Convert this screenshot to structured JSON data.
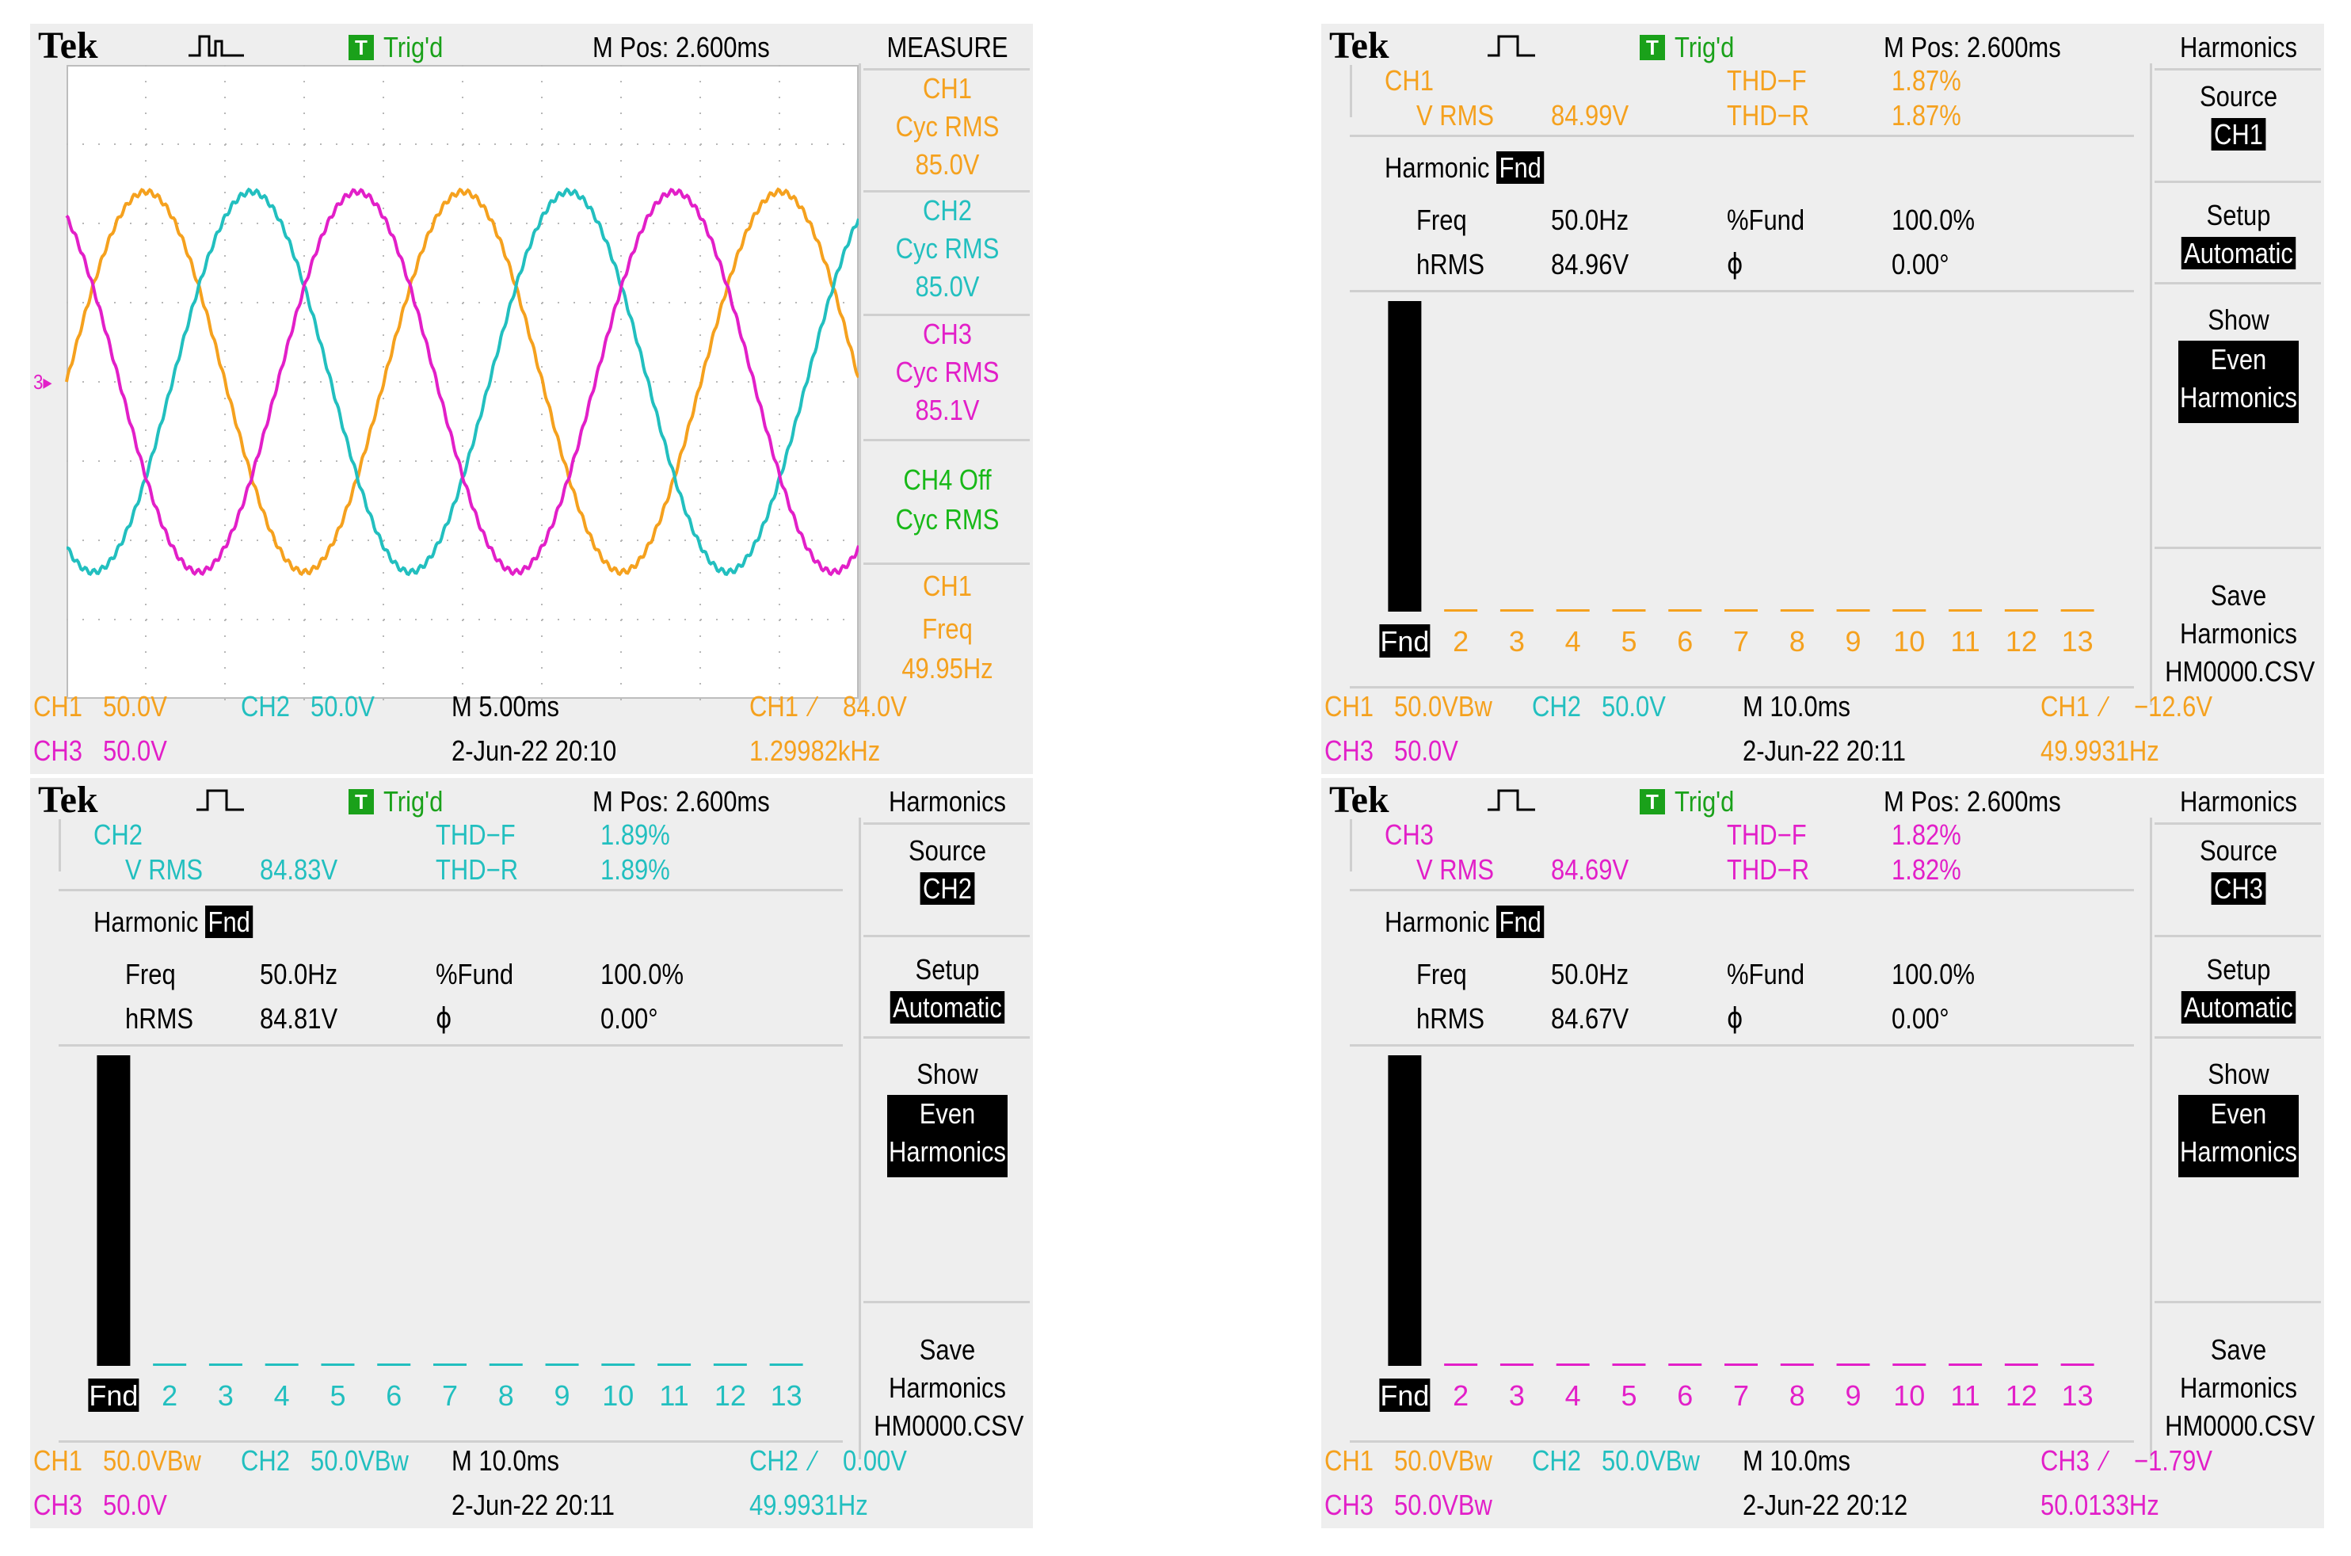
{
  "colors": {
    "ch1": "#f5a11e",
    "ch2": "#22bfbf",
    "ch3": "#e21fc8",
    "ch4": "#18b818",
    "trig": "#1aa11a",
    "bg": "#eeeeee"
  },
  "header": {
    "brand": "Tek",
    "trig_badge": "T",
    "trig_status": "Trig'd",
    "mpos": "M Pos: 2.600ms"
  },
  "panels": [
    {
      "menu_title": "MEASURE",
      "measures": [
        {
          "ch": "CH1",
          "type": "Cyc RMS",
          "value": "85.0V",
          "color": "ch1"
        },
        {
          "ch": "CH2",
          "type": "Cyc RMS",
          "value": "85.0V",
          "color": "ch2"
        },
        {
          "ch": "CH3",
          "type": "Cyc RMS",
          "value": "85.1V",
          "color": "ch3"
        },
        {
          "ch": "CH4 Off",
          "type": "Cyc RMS",
          "value": "",
          "color": "ch4"
        },
        {
          "ch": "CH1",
          "type": "Freq",
          "value": "49.95Hz",
          "color": "ch1"
        }
      ],
      "footer": {
        "ch1": "CH1",
        "ch1_scale": "50.0V",
        "ch2": "CH2",
        "ch2_scale": "50.0V",
        "ch3": "CH3",
        "ch3_scale": "50.0V",
        "timebase": "M 5.00ms",
        "date": "2-Jun-22 20:10",
        "trig_ch": "CH1",
        "trig_level": "84.0V",
        "trig_freq": "1.29982kHz"
      }
    },
    {
      "menu_title": "Harmonics",
      "source_label": "Source",
      "source_value": "CH1",
      "setup_label": "Setup",
      "setup_value": "Automatic",
      "show_label": "Show",
      "show_value1": "Even",
      "show_value2": "Harmonics",
      "save_label1": "Save",
      "save_label2": "Harmonics",
      "save_file": "HM0000.CSV",
      "ch": "CH1",
      "vrms_label": "V RMS",
      "vrms": "84.99V",
      "thdf_label": "THD−F",
      "thdf": "1.87%",
      "thdr_label": "THD−R",
      "thdr": "1.87%",
      "harmonic_label": "Harmonic",
      "harmonic_sel": "Fnd",
      "freq_label": "Freq",
      "freq": "50.0Hz",
      "pfund_label": "%Fund",
      "pfund": "100.0%",
      "hrms_label": "hRMS",
      "hrms": "84.96V",
      "phi_label": "ϕ",
      "phi": "0.00°",
      "footer": {
        "ch1": "CH1",
        "ch1_scale": "50.0VBw",
        "ch2": "CH2",
        "ch2_scale": "50.0V",
        "ch3": "CH3",
        "ch3_scale": "50.0V",
        "timebase": "M 10.0ms",
        "date": "2-Jun-22 20:11",
        "trig_ch": "CH1",
        "trig_level": "−12.6V",
        "trig_freq": "49.9931Hz"
      }
    },
    {
      "menu_title": "Harmonics",
      "source_label": "Source",
      "source_value": "CH2",
      "setup_label": "Setup",
      "setup_value": "Automatic",
      "show_label": "Show",
      "show_value1": "Even",
      "show_value2": "Harmonics",
      "save_label1": "Save",
      "save_label2": "Harmonics",
      "save_file": "HM0000.CSV",
      "ch": "CH2",
      "vrms_label": "V RMS",
      "vrms": "84.83V",
      "thdf_label": "THD−F",
      "thdf": "1.89%",
      "thdr_label": "THD−R",
      "thdr": "1.89%",
      "harmonic_label": "Harmonic",
      "harmonic_sel": "Fnd",
      "freq_label": "Freq",
      "freq": "50.0Hz",
      "pfund_label": "%Fund",
      "pfund": "100.0%",
      "hrms_label": "hRMS",
      "hrms": "84.81V",
      "phi_label": "ϕ",
      "phi": "0.00°",
      "footer": {
        "ch1": "CH1",
        "ch1_scale": "50.0VBw",
        "ch2": "CH2",
        "ch2_scale": "50.0VBw",
        "ch3": "CH3",
        "ch3_scale": "50.0V",
        "timebase": "M 10.0ms",
        "date": "2-Jun-22 20:11",
        "trig_ch": "CH2",
        "trig_level": "0.00V",
        "trig_freq": "49.9931Hz"
      }
    },
    {
      "menu_title": "Harmonics",
      "source_label": "Source",
      "source_value": "CH3",
      "setup_label": "Setup",
      "setup_value": "Automatic",
      "show_label": "Show",
      "show_value1": "Even",
      "show_value2": "Harmonics",
      "save_label1": "Save",
      "save_label2": "Harmonics",
      "save_file": "HM0000.CSV",
      "ch": "CH3",
      "vrms_label": "V RMS",
      "vrms": "84.69V",
      "thdf_label": "THD−F",
      "thdf": "1.82%",
      "thdr_label": "THD−R",
      "thdr": "1.82%",
      "harmonic_label": "Harmonic",
      "harmonic_sel": "Fnd",
      "freq_label": "Freq",
      "freq": "50.0Hz",
      "pfund_label": "%Fund",
      "pfund": "100.0%",
      "hrms_label": "hRMS",
      "hrms": "84.67V",
      "phi_label": "ϕ",
      "phi": "0.00°",
      "footer": {
        "ch1": "CH1",
        "ch1_scale": "50.0VBw",
        "ch2": "CH2",
        "ch2_scale": "50.0VBw",
        "ch3": "CH3",
        "ch3_scale": "50.0VBw",
        "timebase": "M 10.0ms",
        "date": "2-Jun-22 20:12",
        "trig_ch": "CH3",
        "trig_level": "−1.79V",
        "trig_freq": "50.0133Hz"
      }
    }
  ],
  "chart_data": [
    {
      "type": "line",
      "x_unit": "ms",
      "xlim": [
        0,
        50
      ],
      "ylim": [
        -200,
        200
      ],
      "grid": true,
      "series": [
        {
          "name": "CH1",
          "amplitude_v": 120,
          "frequency_hz": 49.95,
          "phase_deg": 0,
          "color": "ch1"
        },
        {
          "name": "CH2",
          "amplitude_v": 120,
          "frequency_hz": 49.95,
          "phase_deg": -120,
          "color": "ch2"
        },
        {
          "name": "CH3",
          "amplitude_v": 120,
          "frequency_hz": 49.95,
          "phase_deg": 120,
          "color": "ch3"
        }
      ]
    },
    {
      "type": "bar",
      "categories": [
        "Fnd",
        "2",
        "3",
        "4",
        "5",
        "6",
        "7",
        "8",
        "9",
        "10",
        "11",
        "12",
        "13"
      ],
      "values": [
        100,
        0.4,
        0.4,
        0.4,
        0.4,
        0.4,
        0.4,
        0.4,
        0.4,
        0.4,
        0.4,
        0.4,
        0.4
      ],
      "ylim": [
        0,
        100
      ],
      "color": "ch1"
    },
    {
      "type": "bar",
      "categories": [
        "Fnd",
        "2",
        "3",
        "4",
        "5",
        "6",
        "7",
        "8",
        "9",
        "10",
        "11",
        "12",
        "13"
      ],
      "values": [
        100,
        0.4,
        0.4,
        0.4,
        0.4,
        0.4,
        0.4,
        0.4,
        0.4,
        0.4,
        0.4,
        0.4,
        0.4
      ],
      "ylim": [
        0,
        100
      ],
      "color": "ch2"
    },
    {
      "type": "bar",
      "categories": [
        "Fnd",
        "2",
        "3",
        "4",
        "5",
        "6",
        "7",
        "8",
        "9",
        "10",
        "11",
        "12",
        "13"
      ],
      "values": [
        100,
        0.4,
        0.4,
        0.4,
        0.4,
        0.4,
        0.4,
        0.4,
        0.4,
        0.4,
        0.4,
        0.4,
        0.4
      ],
      "ylim": [
        0,
        100
      ],
      "color": "ch3"
    }
  ]
}
